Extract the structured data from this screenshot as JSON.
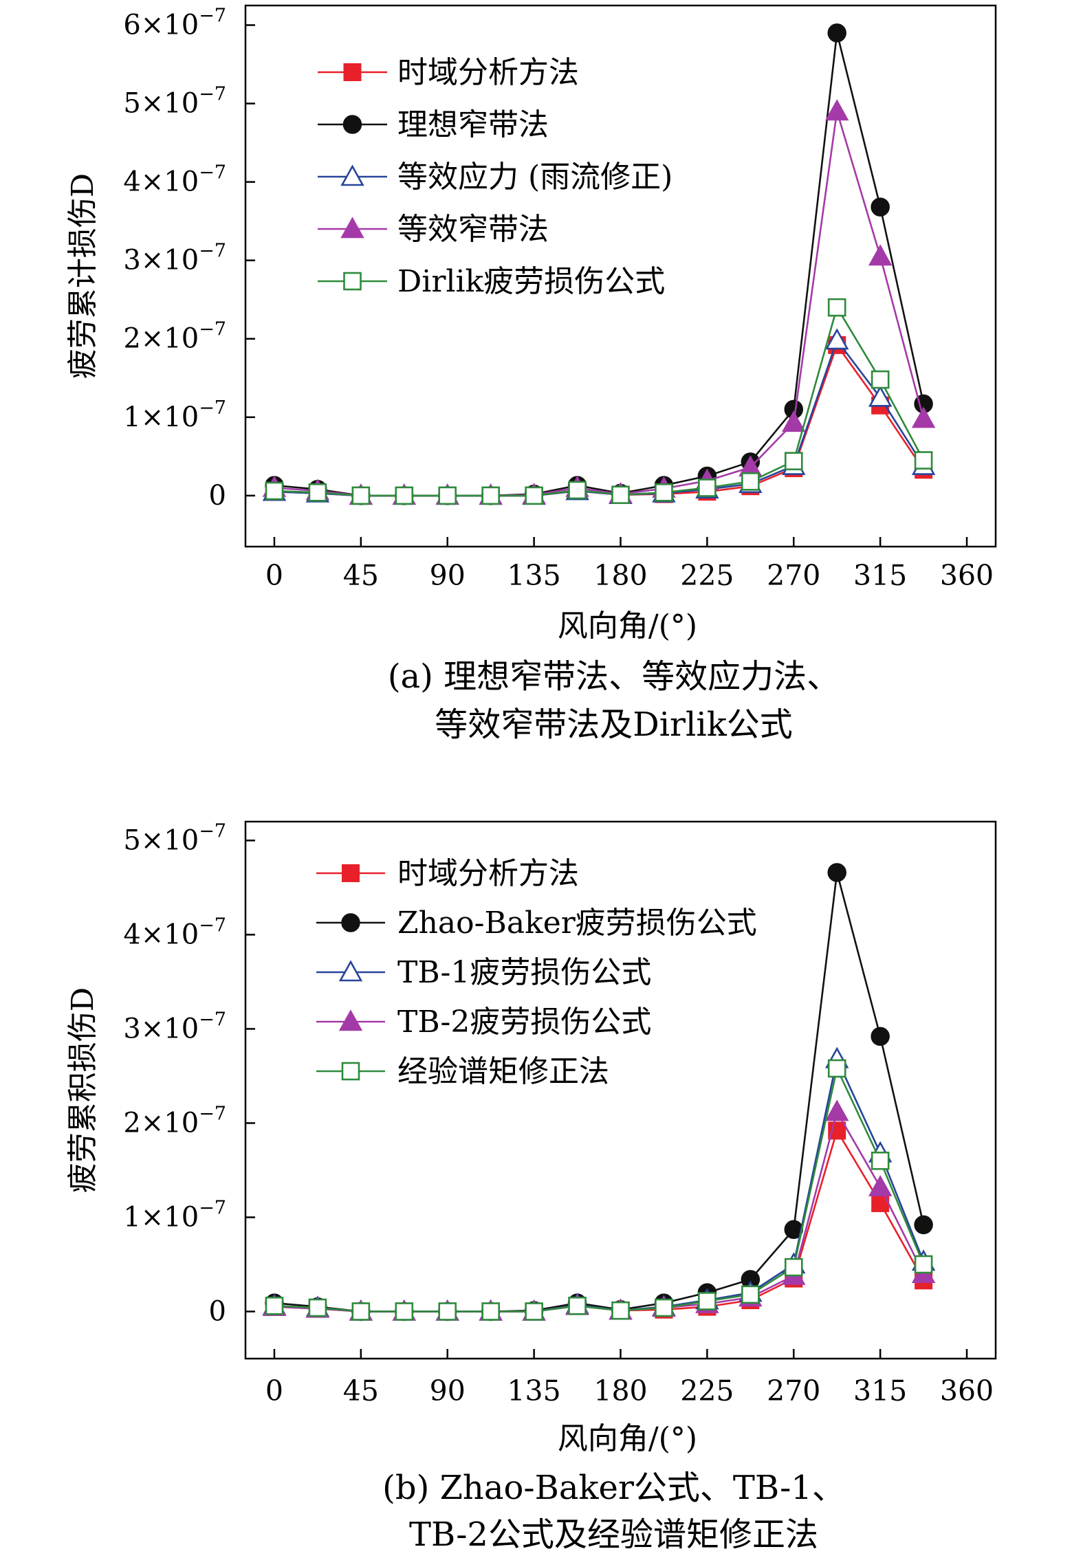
{
  "chart_data": [
    {
      "type": "line",
      "panel": "a",
      "ylabel": "疲劳累计损伤D",
      "xlabel": "风向角/(°)",
      "caption_line1": "(a) 理想窄带法、等效应力法、",
      "caption_line2": "等效窄带法及Dirlik公式",
      "xlim": [
        -15,
        375
      ],
      "ylim": [
        -0.65,
        6.25
      ],
      "y_unit": "1e-7",
      "xticks": [
        0,
        45,
        90,
        135,
        180,
        225,
        270,
        315,
        360
      ],
      "xtick_labels": [
        "0",
        "45",
        "90",
        "135",
        "180",
        "225",
        "270",
        "315",
        "360"
      ],
      "yticks": [
        0,
        1,
        2,
        3,
        4,
        5,
        6
      ],
      "ytick_labels": [
        {
          "mantissa": "0",
          "base": "",
          "exp": ""
        },
        {
          "mantissa": "1",
          "base": "×10",
          "exp": "−7"
        },
        {
          "mantissa": "2",
          "base": "×10",
          "exp": "−7"
        },
        {
          "mantissa": "3",
          "base": "×10",
          "exp": "−7"
        },
        {
          "mantissa": "4",
          "base": "×10",
          "exp": "−7"
        },
        {
          "mantissa": "5",
          "base": "×10",
          "exp": "−7"
        },
        {
          "mantissa": "6",
          "base": "×10",
          "exp": "−7"
        }
      ],
      "x": [
        0,
        22.5,
        45,
        67.5,
        90,
        112.5,
        135,
        157.5,
        180,
        202.5,
        225,
        247.5,
        270,
        292.5,
        315,
        337.5
      ],
      "legend_position": "top-left",
      "series": [
        {
          "name": "时域分析方法",
          "color": "#e8202a",
          "marker": "square-filled",
          "values": [
            0.05,
            0.03,
            0,
            0,
            0,
            0,
            0,
            0.06,
            0.01,
            0.02,
            0.05,
            0.12,
            0.35,
            1.92,
            1.15,
            0.33
          ]
        },
        {
          "name": "理想窄带法",
          "color": "#111111",
          "marker": "circle-filled",
          "values": [
            0.13,
            0.08,
            0,
            0,
            0,
            0,
            0.02,
            0.13,
            0.03,
            0.13,
            0.25,
            0.43,
            1.1,
            5.9,
            3.68,
            1.17
          ]
        },
        {
          "name": "等效应力 (雨流修正)",
          "color": "#27449a",
          "marker": "triangle-open",
          "values": [
            0.05,
            0.03,
            0,
            0,
            0,
            0,
            0,
            0.06,
            0.01,
            0.03,
            0.08,
            0.15,
            0.38,
            1.98,
            1.25,
            0.38
          ]
        },
        {
          "name": "等效窄带法",
          "color": "#a43aa8",
          "marker": "triangle-filled",
          "values": [
            0.1,
            0.06,
            0,
            0,
            0,
            0,
            0.01,
            0.1,
            0.02,
            0.09,
            0.19,
            0.36,
            0.93,
            4.9,
            3.05,
            0.98
          ]
        },
        {
          "name": "Dirlik疲劳损伤公式",
          "color": "#2e8a3c",
          "marker": "square-open",
          "values": [
            0.06,
            0.04,
            0,
            0,
            0,
            0,
            0,
            0.07,
            0.01,
            0.04,
            0.1,
            0.18,
            0.44,
            2.4,
            1.48,
            0.45
          ]
        }
      ]
    },
    {
      "type": "line",
      "panel": "b",
      "ylabel": "疲劳累积损伤D",
      "xlabel": "风向角/(°)",
      "caption_line1": "(b) Zhao-Baker公式、TB-1、",
      "caption_line2": "TB-2公式及经验谱矩修正法",
      "xlim": [
        -15,
        375
      ],
      "ylim": [
        -0.5,
        5.2
      ],
      "y_unit": "1e-7",
      "xticks": [
        0,
        45,
        90,
        135,
        180,
        225,
        270,
        315,
        360
      ],
      "xtick_labels": [
        "0",
        "45",
        "90",
        "135",
        "180",
        "225",
        "270",
        "315",
        "360"
      ],
      "yticks": [
        0,
        1,
        2,
        3,
        4,
        5
      ],
      "ytick_labels": [
        {
          "mantissa": "0",
          "base": "",
          "exp": ""
        },
        {
          "mantissa": "1",
          "base": "×10",
          "exp": "−7"
        },
        {
          "mantissa": "2",
          "base": "×10",
          "exp": "−7"
        },
        {
          "mantissa": "3",
          "base": "×10",
          "exp": "−7"
        },
        {
          "mantissa": "4",
          "base": "×10",
          "exp": "−7"
        },
        {
          "mantissa": "5",
          "base": "×10",
          "exp": "−7"
        }
      ],
      "x": [
        0,
        22.5,
        45,
        67.5,
        90,
        112.5,
        135,
        157.5,
        180,
        202.5,
        225,
        247.5,
        270,
        292.5,
        315,
        337.5
      ],
      "legend_position": "top-left",
      "series": [
        {
          "name": "时域分析方法",
          "color": "#e8202a",
          "marker": "square-filled",
          "values": [
            0.05,
            0.03,
            0,
            0,
            0,
            0,
            0,
            0.06,
            0.01,
            0.02,
            0.05,
            0.12,
            0.35,
            1.92,
            1.15,
            0.33
          ]
        },
        {
          "name": "Zhao-Baker疲劳损伤公式",
          "color": "#111111",
          "marker": "circle-filled",
          "values": [
            0.09,
            0.05,
            0,
            0,
            0,
            0,
            0.01,
            0.09,
            0.02,
            0.09,
            0.2,
            0.34,
            0.87,
            4.66,
            2.92,
            0.92
          ]
        },
        {
          "name": "TB-1疲劳损伤公式",
          "color": "#27449a",
          "marker": "triangle-open",
          "values": [
            0.06,
            0.04,
            0,
            0,
            0,
            0,
            0,
            0.07,
            0.01,
            0.05,
            0.12,
            0.2,
            0.5,
            2.68,
            1.68,
            0.53
          ]
        },
        {
          "name": "TB-2疲劳损伤公式",
          "color": "#a43aa8",
          "marker": "triangle-filled",
          "values": [
            0.05,
            0.03,
            0,
            0,
            0,
            0,
            0,
            0.06,
            0.01,
            0.04,
            0.08,
            0.15,
            0.38,
            2.12,
            1.32,
            0.4
          ]
        },
        {
          "name": "经验谱矩修正法",
          "color": "#2e8a3c",
          "marker": "square-open",
          "values": [
            0.06,
            0.04,
            0,
            0,
            0,
            0,
            0,
            0.06,
            0.01,
            0.04,
            0.11,
            0.18,
            0.47,
            2.58,
            1.6,
            0.5
          ]
        }
      ]
    }
  ]
}
